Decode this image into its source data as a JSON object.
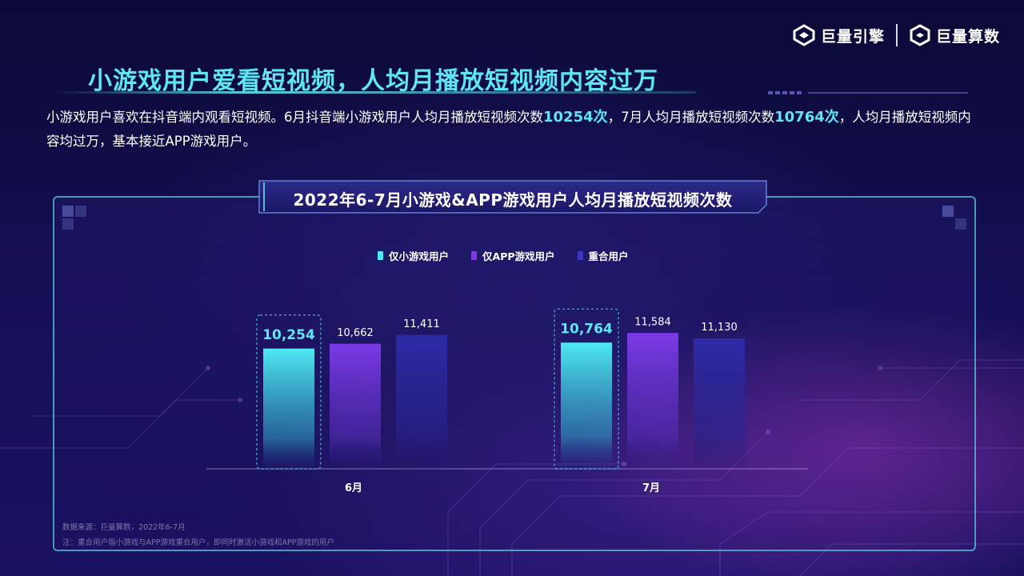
{
  "header": {
    "logo_left": "巨量引擎",
    "logo_right": "巨量算数",
    "headline": "小游戏用户爱看短视频，人均月播放短视频内容过万"
  },
  "description": {
    "part1": "小游戏用户喜欢在抖音端内观看短视频。6月抖音端小游戏用户人均月播放短视频次数",
    "hl1": "10254次",
    "part2": "，7月人均月播放短视频次数",
    "hl2": "10764次",
    "part3": "，人均月播放短视频内容均过万，基本接近APP游戏用户。"
  },
  "chart_data": {
    "type": "bar",
    "title": "2022年6-7月小游戏&APP游戏用户人均月播放短视频次数",
    "categories": [
      "6月",
      "7月"
    ],
    "series": [
      {
        "name": "仅小游戏用户",
        "values": [
          10254,
          10764
        ],
        "labels": [
          "10,254",
          "10,764"
        ],
        "color": "#4de8f2"
      },
      {
        "name": "仅APP游戏用户",
        "values": [
          10662,
          11584
        ],
        "labels": [
          "10,662",
          "11,584"
        ],
        "color": "#7a3ae6"
      },
      {
        "name": "重合用户",
        "values": [
          11411,
          11130
        ],
        "labels": [
          "11,411",
          "11,130"
        ],
        "color": "#2e2ba8"
      }
    ],
    "highlight_series": "仅小游戏用户",
    "grid": false,
    "legend_position": "top"
  },
  "footnotes": {
    "source": "数据来源：巨量算数，2022年6-7月",
    "note": "注：重合用户指小游戏与APP游戏重合用户，即同时激活小游戏和APP游戏的用户"
  }
}
